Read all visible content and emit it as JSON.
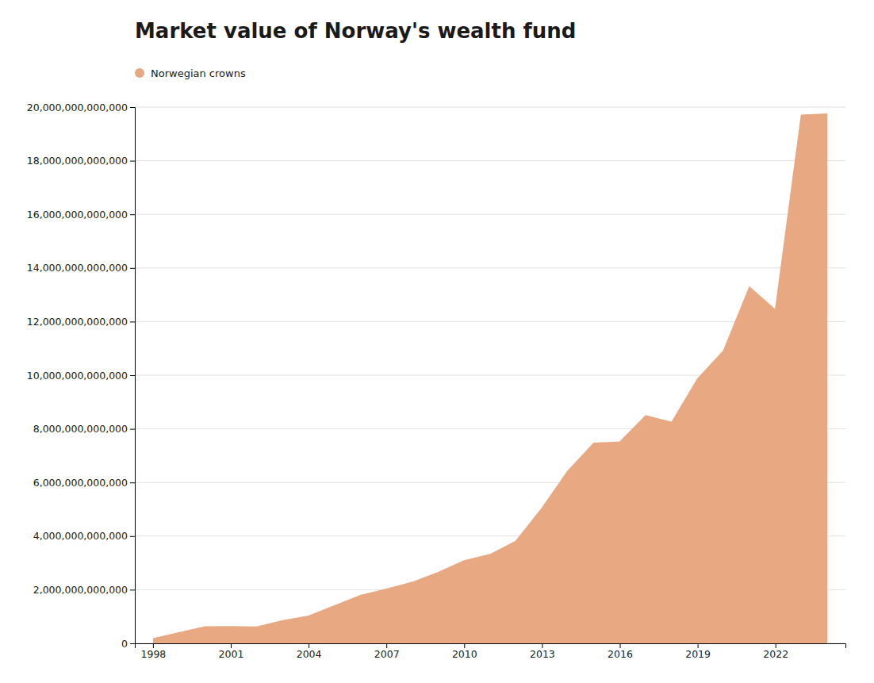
{
  "chart_data": {
    "type": "area",
    "title": "Market value of Norway's wealth fund",
    "x": [
      1998,
      1999,
      2000,
      2001,
      2002,
      2003,
      2004,
      2005,
      2006,
      2007,
      2008,
      2009,
      2010,
      2011,
      2012,
      2013,
      2014,
      2015,
      2016,
      2017,
      2018,
      2019,
      2020,
      2021,
      2022,
      2023,
      2024
    ],
    "series": [
      {
        "name": "Norwegian crowns",
        "color": "#e8a882",
        "values": [
          171900000000,
          394900000000,
          613700000000,
          619900000000,
          609100000000,
          845000000000,
          1011800000000,
          1397300000000,
          1782900000000,
          2018500000000,
          2275400000000,
          2640000000000,
          3076800000000,
          3312400000000,
          3814500000000,
          5038400000000,
          6430800000000,
          7460100000000,
          7509900000000,
          8487600000000,
          8239000000000,
          9862200000000,
          10907000000000,
          13286300000000,
          12429100000000,
          19699500000000,
          19741000000000
        ]
      }
    ],
    "xlim": [
      1997.3,
      2024.7
    ],
    "xticks": [
      1998,
      2001,
      2004,
      2007,
      2010,
      2013,
      2016,
      2019,
      2022
    ],
    "ylim": [
      0,
      20000000000000
    ],
    "yticks": [
      0,
      {
        "value": 2000000000000,
        "label": "2,000,000,000,000"
      },
      {
        "value": 4000000000000,
        "label": "4,000,000,000,000"
      },
      {
        "value": 6000000000000,
        "label": "6,000,000,000,000"
      },
      {
        "value": 8000000000000,
        "label": "8,000,000,000,000"
      },
      {
        "value": 10000000000000,
        "label": "10,000,000,000,000"
      },
      {
        "value": 12000000000000,
        "label": "12,000,000,000,000"
      },
      {
        "value": 14000000000000,
        "label": "14,000,000,000,000"
      },
      {
        "value": 16000000000000,
        "label": "16,000,000,000,000"
      },
      {
        "value": 18000000000000,
        "label": "18,000,000,000,000"
      },
      {
        "value": 20000000000000,
        "label": "20,000,000,000,000"
      }
    ],
    "grid": "y",
    "legend": "upper left"
  }
}
